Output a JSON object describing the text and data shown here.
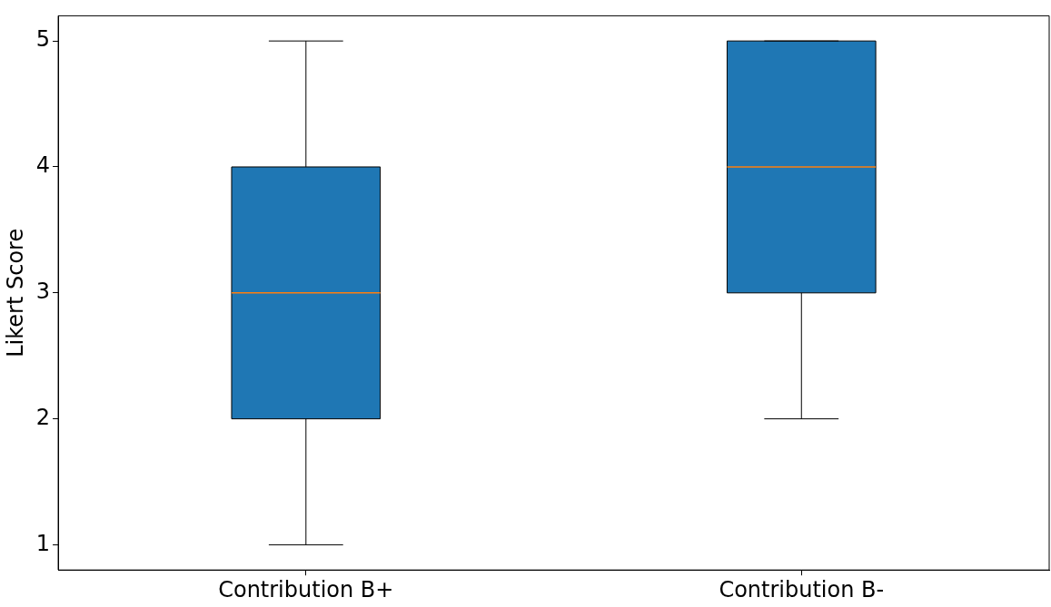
{
  "chart_data": {
    "type": "box",
    "ylabel": "Likert Score",
    "categories": [
      "Contribution B+",
      "Contribution B-"
    ],
    "series": [
      {
        "color": "#1f77b4",
        "boxes": [
          {
            "low": 1,
            "q1": 2,
            "median": 3,
            "q3": 4,
            "high": 5
          },
          {
            "low": 2,
            "q1": 3,
            "median": 4,
            "q3": 5,
            "high": 5
          }
        ]
      }
    ],
    "ylim": [
      0.8,
      5.2
    ],
    "yticks": [
      1,
      2,
      3,
      4,
      5
    ],
    "grid": false
  }
}
